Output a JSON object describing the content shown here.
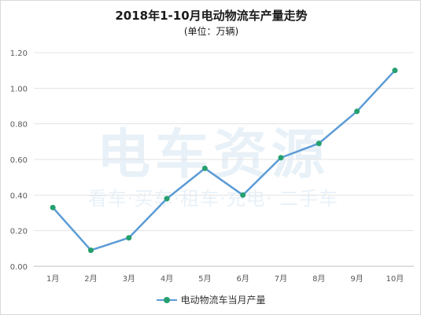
{
  "chart_data": {
    "type": "line",
    "title": "2018年1-10月电动物流车产量走势",
    "subtitle": "(单位：万辆)",
    "categories": [
      "1月",
      "2月",
      "3月",
      "4月",
      "5月",
      "6月",
      "7月",
      "8月",
      "9月",
      "10月"
    ],
    "series": [
      {
        "name": "电动物流车当月产量",
        "values": [
          0.33,
          0.09,
          0.16,
          0.38,
          0.55,
          0.4,
          0.61,
          0.69,
          0.87,
          1.1
        ],
        "line_color": "#5b9bd5",
        "marker_color": "#25a06e"
      }
    ],
    "ylim": [
      0,
      1.2
    ],
    "y_ticks": [
      "0.00",
      "0.20",
      "0.40",
      "0.60",
      "0.80",
      "1.00",
      "1.20"
    ],
    "grid": true,
    "legend_position": "bottom"
  },
  "watermark": {
    "main": "电车资源",
    "sub": "看车·买车·租车·充电· 二手车"
  }
}
